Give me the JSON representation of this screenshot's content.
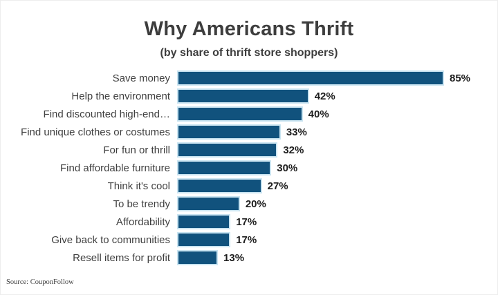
{
  "header": {
    "title": "Why Americans Thrift",
    "subtitle": "(by share of thrift store shoppers)"
  },
  "footer": {
    "source": "Source: CouponFollow"
  },
  "colors": {
    "bar_fill": "#11527d",
    "bar_border": "#c9e4f1",
    "title_text": "#3d3d3d",
    "label_text": "#3f3f3f",
    "value_text": "#1d1d1d"
  },
  "chart_data": {
    "type": "bar",
    "orientation": "horizontal",
    "title": "Why Americans Thrift",
    "subtitle": "(by share of thrift store shoppers)",
    "categories": [
      "Save money",
      "Help the environment",
      "Find discounted high-end…",
      "Find unique clothes or costumes",
      "For fun or thrill",
      "Find affordable furniture",
      "Think it's cool",
      "To be trendy",
      "Affordability",
      "Give back to communities",
      "Resell items for profit"
    ],
    "values": [
      85,
      42,
      40,
      33,
      32,
      30,
      27,
      20,
      17,
      17,
      13
    ],
    "value_suffix": "%",
    "value_labels": [
      "85%",
      "42%",
      "40%",
      "33%",
      "32%",
      "30%",
      "27%",
      "20%",
      "17%",
      "17%",
      "13%"
    ],
    "xlabel": "",
    "ylabel": "",
    "xlim": [
      0,
      100
    ],
    "grid": false,
    "legend": false,
    "axis_shown": false,
    "data_labels_position": "end-of-bar"
  }
}
